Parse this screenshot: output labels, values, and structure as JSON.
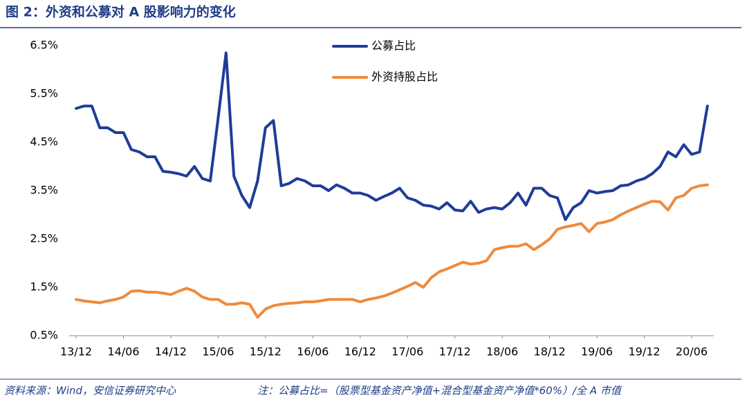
{
  "chart_data": {
    "type": "line",
    "title": "图 2：外资和公募对 A 股影响力的变化",
    "source": "资料来源：Wind，安信证券研究中心",
    "note": "注：公募占比=（股票型基金资产净值+混合型基金资产净值*60%）/全 A 市值",
    "x": [
      "13/12",
      "14/01",
      "14/02",
      "14/03",
      "14/04",
      "14/05",
      "14/06",
      "14/07",
      "14/08",
      "14/09",
      "14/10",
      "14/11",
      "14/12",
      "15/01",
      "15/02",
      "15/03",
      "15/04",
      "15/05",
      "15/06",
      "15/07",
      "15/08",
      "15/09",
      "15/10",
      "15/11",
      "15/12",
      "16/01",
      "16/02",
      "16/03",
      "16/04",
      "16/05",
      "16/06",
      "16/07",
      "16/08",
      "16/09",
      "16/10",
      "16/11",
      "16/12",
      "17/01",
      "17/02",
      "17/03",
      "17/04",
      "17/05",
      "17/06",
      "17/07",
      "17/08",
      "17/09",
      "17/10",
      "17/11",
      "17/12",
      "18/01",
      "18/02",
      "18/03",
      "18/04",
      "18/05",
      "18/06",
      "18/07",
      "18/08",
      "18/09",
      "18/10",
      "18/11",
      "18/12",
      "19/01",
      "19/02",
      "19/03",
      "19/04",
      "19/05",
      "19/06",
      "19/07",
      "19/08",
      "19/09",
      "19/10",
      "19/11",
      "19/12",
      "20/01",
      "20/02",
      "20/03",
      "20/04",
      "20/05",
      "20/06",
      "20/07",
      "20/08"
    ],
    "xticks": [
      "13/12",
      "14/06",
      "14/12",
      "15/06",
      "15/12",
      "16/06",
      "16/12",
      "17/06",
      "17/12",
      "18/06",
      "18/12",
      "19/06",
      "19/12",
      "20/06"
    ],
    "ylim": [
      0.5,
      6.5
    ],
    "yticks": [
      {
        "value": 0.5,
        "label": "0.5%"
      },
      {
        "value": 1.5,
        "label": "1.5%"
      },
      {
        "value": 2.5,
        "label": "2.5%"
      },
      {
        "value": 3.5,
        "label": "3.5%"
      },
      {
        "value": 4.5,
        "label": "4.5%"
      },
      {
        "value": 5.5,
        "label": "5.5%"
      },
      {
        "value": 6.5,
        "label": "6.5%"
      }
    ],
    "grid": false,
    "legend": "top",
    "series": [
      {
        "name": "公募占比",
        "color": "#1f3c99",
        "values": [
          5.2,
          5.25,
          5.25,
          4.8,
          4.8,
          4.7,
          4.7,
          4.35,
          4.3,
          4.2,
          4.2,
          3.9,
          3.88,
          3.85,
          3.8,
          4.0,
          3.75,
          3.7,
          5.0,
          6.35,
          3.8,
          3.4,
          3.15,
          3.7,
          4.8,
          4.95,
          3.6,
          3.65,
          3.75,
          3.7,
          3.6,
          3.6,
          3.5,
          3.62,
          3.55,
          3.45,
          3.45,
          3.4,
          3.3,
          3.38,
          3.45,
          3.55,
          3.35,
          3.3,
          3.2,
          3.18,
          3.12,
          3.25,
          3.1,
          3.08,
          3.28,
          3.05,
          3.12,
          3.15,
          3.12,
          3.25,
          3.45,
          3.2,
          3.55,
          3.55,
          3.4,
          3.35,
          2.9,
          3.15,
          3.25,
          3.5,
          3.45,
          3.48,
          3.5,
          3.6,
          3.62,
          3.7,
          3.75,
          3.85,
          4.0,
          4.3,
          4.2,
          4.45,
          4.25,
          4.3,
          5.25
        ]
      },
      {
        "name": "外资持股占比",
        "color": "#f08a3a",
        "values": [
          1.25,
          1.22,
          1.2,
          1.18,
          1.22,
          1.25,
          1.3,
          1.42,
          1.43,
          1.4,
          1.4,
          1.38,
          1.35,
          1.42,
          1.48,
          1.42,
          1.3,
          1.25,
          1.25,
          1.15,
          1.15,
          1.18,
          1.15,
          0.88,
          1.05,
          1.12,
          1.15,
          1.17,
          1.18,
          1.2,
          1.2,
          1.22,
          1.25,
          1.25,
          1.25,
          1.25,
          1.2,
          1.25,
          1.28,
          1.32,
          1.38,
          1.45,
          1.52,
          1.6,
          1.5,
          1.7,
          1.82,
          1.88,
          1.95,
          2.02,
          1.98,
          2.0,
          2.05,
          2.28,
          2.32,
          2.35,
          2.35,
          2.4,
          2.28,
          2.38,
          2.5,
          2.7,
          2.75,
          2.78,
          2.82,
          2.65,
          2.82,
          2.85,
          2.9,
          3.0,
          3.08,
          3.15,
          3.22,
          3.28,
          3.27,
          3.1,
          3.35,
          3.4,
          3.55,
          3.6,
          3.62
        ]
      }
    ]
  }
}
